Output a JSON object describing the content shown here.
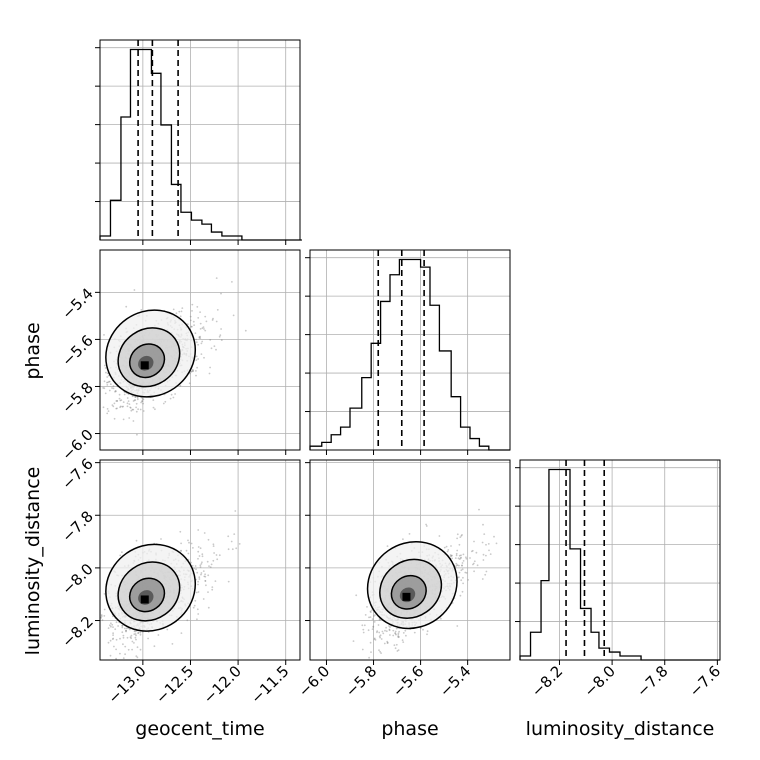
{
  "chart_data": {
    "type": "corner",
    "parameters": [
      "geocent_time",
      "phase",
      "luminosity_distance"
    ],
    "axis_labels": {
      "geocent_time": "geocent_time",
      "phase": "phase",
      "luminosity_distance": "luminosity_distance"
    },
    "ranges": {
      "geocent_time": [
        -13.45,
        -11.35
      ],
      "phase": [
        -6.07,
        -5.22
      ],
      "luminosity_distance": [
        -8.35,
        -7.59
      ]
    },
    "ticks": {
      "geocent_time": {
        "values": [
          -13.0,
          -12.5,
          -12.0,
          -11.5
        ],
        "labels": [
          "−13.0",
          "−12.5",
          "−12.0",
          "−11.5"
        ]
      },
      "phase": {
        "values": [
          -6.0,
          -5.8,
          -5.6,
          -5.4
        ],
        "labels": [
          "−6.0",
          "−5.8",
          "−5.6",
          "−5.4"
        ]
      },
      "luminosity_distance": {
        "values": [
          -8.2,
          -8.0,
          -7.8,
          -7.6
        ],
        "labels": [
          "−8.2",
          "−8.0",
          "−7.8",
          "−7.6"
        ]
      }
    },
    "quantiles": {
      "geocent_time": [
        -13.05,
        -12.9,
        -12.63
      ],
      "phase": [
        -5.78,
        -5.68,
        -5.585
      ],
      "luminosity_distance": [
        -8.175,
        -8.105,
        -8.03
      ]
    },
    "histograms": {
      "geocent_time": {
        "edges": [
          -13.45,
          -13.34,
          -13.23,
          -13.13,
          -13.02,
          -12.91,
          -12.81,
          -12.7,
          -12.6,
          -12.49,
          -12.38,
          -12.28,
          -12.17,
          -12.07,
          -11.96,
          -11.85,
          -11.75,
          -11.64,
          -11.54,
          -11.43,
          -11.33
        ],
        "counts": [
          1,
          10,
          31,
          48,
          48,
          42,
          29,
          14,
          7,
          5,
          4,
          2,
          1,
          1,
          0,
          0,
          0,
          0,
          0,
          0
        ]
      },
      "phase": {
        "edges": [
          -6.07,
          -6.02,
          -5.98,
          -5.94,
          -5.9,
          -5.85,
          -5.81,
          -5.77,
          -5.73,
          -5.69,
          -5.64,
          -5.6,
          -5.56,
          -5.52,
          -5.47,
          -5.43,
          -5.39,
          -5.35,
          -5.31,
          -5.26,
          -5.22
        ],
        "counts": [
          1,
          2,
          4,
          6,
          11,
          19,
          28,
          39,
          46,
          50,
          50,
          48,
          38,
          26,
          14,
          6,
          3,
          1,
          0,
          0
        ]
      },
      "luminosity_distance": {
        "edges": [
          -8.35,
          -8.31,
          -8.27,
          -8.24,
          -8.2,
          -8.16,
          -8.12,
          -8.08,
          -8.05,
          -8.01,
          -7.97,
          -7.93,
          -7.89,
          -7.85,
          -7.82,
          -7.78,
          -7.74,
          -7.7,
          -7.66,
          -7.63,
          -7.59
        ],
        "counts": [
          1,
          7,
          20,
          48,
          48,
          28,
          13,
          7,
          3,
          2,
          1,
          1,
          0,
          0,
          0,
          0,
          0,
          0,
          0,
          0
        ]
      }
    },
    "density_peaks": {
      "phase_vs_geocent_time": {
        "x": -12.98,
        "y": -5.71
      },
      "luminosity_distance_vs_geocent_time": {
        "x": -12.98,
        "y": -8.12
      },
      "luminosity_distance_vs_phase": {
        "x": -5.66,
        "y": -8.11
      }
    },
    "grid": true
  }
}
